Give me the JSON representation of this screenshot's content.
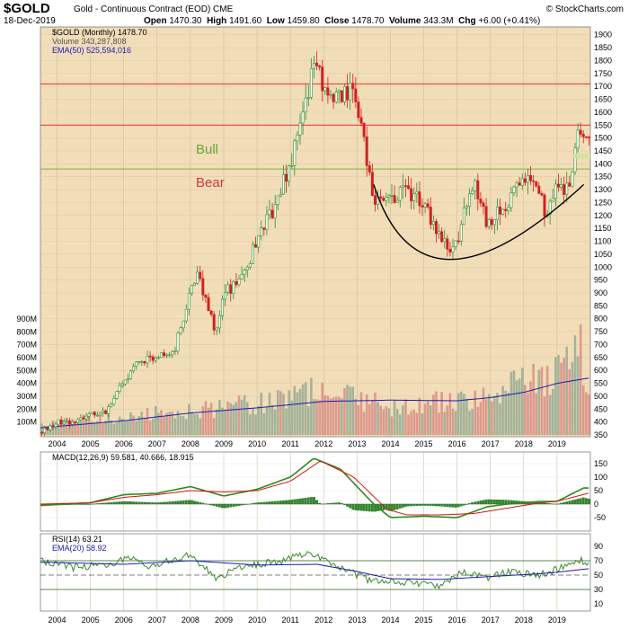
{
  "header": {
    "symbol": "$GOLD",
    "name": "Gold - Continuous Contract (EOD) CME",
    "date": "18-Dec-2019",
    "open_label": "Open",
    "open": "1470.30",
    "high_label": "High",
    "high": "1491.60",
    "low_label": "Low",
    "low": "1459.80",
    "close_label": "Close",
    "close": "1478.70",
    "volume_label": "Volume",
    "volume": "343.3M",
    "chg_label": "Chg",
    "chg": "+6.00 (+0.41%)",
    "credit": "© StockCharts.com"
  },
  "legend": {
    "price": "$GOLD (Monthly) 1478.70",
    "volume": "Volume 343,287,808",
    "ema": "EMA(50) 525,594,016",
    "macd": "MACD(12,26,9) 59.581, 40.666, 18.915",
    "rsi": "RSI(14) 63.21",
    "rsi_ema": "EMA(20) 58.92"
  },
  "annotations": {
    "bull": "Bull",
    "bear": "Bear"
  },
  "colors": {
    "panel_bg": "#f2ddb9",
    "up": "#2f8f2f",
    "down": "#d21f1f",
    "vol_up": "#a4b39a",
    "vol_down": "#dc9a8e",
    "ema": "#1a1ab0",
    "macd": "#2d8a1f",
    "signal": "#d41414",
    "resistance": "#e03232",
    "support": "#7ab53a"
  },
  "chart_data": [
    {
      "type": "candlestick",
      "title": "$GOLD (Monthly)",
      "x_ticks": [
        "2004",
        "2005",
        "2006",
        "2007",
        "2008",
        "2009",
        "2010",
        "2011",
        "2012",
        "2013",
        "2014",
        "2015",
        "2016",
        "2017",
        "2018",
        "2019"
      ],
      "y_ticks_price": [
        350,
        400,
        450,
        500,
        550,
        600,
        650,
        700,
        750,
        800,
        850,
        900,
        950,
        1000,
        1050,
        1100,
        1150,
        1200,
        1250,
        1300,
        1350,
        1400,
        1450,
        1500,
        1550,
        1600,
        1650,
        1700,
        1750,
        1800,
        1850,
        1900
      ],
      "y_ticks_volume": [
        "100M",
        "200M",
        "300M",
        "400M",
        "500M",
        "600M",
        "700M",
        "800M",
        "900M"
      ],
      "price_path": [
        [
          2003.5,
          360
        ],
        [
          2004,
          400
        ],
        [
          2004.5,
          400
        ],
        [
          2005,
          430
        ],
        [
          2005.5,
          440
        ],
        [
          2006,
          560
        ],
        [
          2006.5,
          640
        ],
        [
          2007,
          650
        ],
        [
          2007.5,
          670
        ],
        [
          2008,
          900
        ],
        [
          2008.25,
          970
        ],
        [
          2008.75,
          740
        ],
        [
          2009,
          900
        ],
        [
          2009.5,
          950
        ],
        [
          2010,
          1100
        ],
        [
          2010.5,
          1230
        ],
        [
          2011,
          1400
        ],
        [
          2011.5,
          1650
        ],
        [
          2011.67,
          1830
        ],
        [
          2012,
          1700
        ],
        [
          2012.5,
          1650
        ],
        [
          2012.9,
          1700
        ],
        [
          2013.25,
          1450
        ],
        [
          2013.5,
          1250
        ],
        [
          2014,
          1250
        ],
        [
          2014.5,
          1300
        ],
        [
          2015,
          1250
        ],
        [
          2015.5,
          1100
        ],
        [
          2015.9,
          1060
        ],
        [
          2016.5,
          1340
        ],
        [
          2016.9,
          1170
        ],
        [
          2017.5,
          1250
        ],
        [
          2018,
          1340
        ],
        [
          2018.4,
          1300
        ],
        [
          2018.7,
          1190
        ],
        [
          2019,
          1320
        ],
        [
          2019.4,
          1300
        ],
        [
          2019.6,
          1510
        ],
        [
          2019.75,
          1510
        ],
        [
          2019.95,
          1478.7
        ]
      ],
      "volume_path": [
        [
          2003.5,
          90
        ],
        [
          2006,
          150
        ],
        [
          2008,
          200
        ],
        [
          2010,
          250
        ],
        [
          2011.6,
          350
        ],
        [
          2013,
          300
        ],
        [
          2014,
          230
        ],
        [
          2016,
          280
        ],
        [
          2017,
          300
        ],
        [
          2018,
          450
        ],
        [
          2018.8,
          420
        ],
        [
          2019.5,
          650
        ],
        [
          2019.7,
          770
        ],
        [
          2019.95,
          343
        ]
      ],
      "ema_volume_path": [
        [
          2003.5,
          55
        ],
        [
          2006,
          110
        ],
        [
          2008,
          170
        ],
        [
          2010,
          210
        ],
        [
          2012,
          260
        ],
        [
          2014,
          270
        ],
        [
          2016,
          265
        ],
        [
          2017,
          290
        ],
        [
          2018,
          330
        ],
        [
          2019,
          400
        ],
        [
          2019.9,
          440
        ]
      ],
      "resistance_levels": [
        1550,
        1710
      ],
      "support_level": 1380,
      "cup_curve": [
        [
          2013.5,
          1320
        ],
        [
          2015.8,
          1030
        ],
        [
          2019.8,
          1320
        ]
      ]
    },
    {
      "type": "line",
      "title": "MACD(12,26,9)",
      "y_ticks": [
        -50,
        0,
        50,
        100,
        150
      ],
      "macd_path": [
        [
          2003.5,
          -5
        ],
        [
          2005,
          5
        ],
        [
          2006,
          35
        ],
        [
          2007,
          40
        ],
        [
          2008,
          65
        ],
        [
          2009,
          30
        ],
        [
          2010,
          55
        ],
        [
          2011,
          100
        ],
        [
          2011.7,
          170
        ],
        [
          2012.5,
          130
        ],
        [
          2013.5,
          0
        ],
        [
          2014,
          -50
        ],
        [
          2015,
          -45
        ],
        [
          2016,
          -50
        ],
        [
          2016.9,
          -10
        ],
        [
          2017.5,
          0
        ],
        [
          2018.5,
          10
        ],
        [
          2019,
          10
        ],
        [
          2019.8,
          60
        ],
        [
          2019.95,
          59.581
        ]
      ],
      "signal_path": [
        [
          2003.5,
          0
        ],
        [
          2005,
          5
        ],
        [
          2006,
          25
        ],
        [
          2007,
          35
        ],
        [
          2008,
          50
        ],
        [
          2009,
          45
        ],
        [
          2010,
          50
        ],
        [
          2011,
          85
        ],
        [
          2011.9,
          160
        ],
        [
          2012.9,
          100
        ],
        [
          2013.9,
          -20
        ],
        [
          2014.5,
          -40
        ],
        [
          2015.5,
          -40
        ],
        [
          2016.5,
          -35
        ],
        [
          2017.5,
          -15
        ],
        [
          2018.5,
          5
        ],
        [
          2019,
          10
        ],
        [
          2019.95,
          40.666
        ]
      ]
    },
    {
      "type": "line",
      "title": "RSI(14)",
      "y_ticks": [
        10,
        30,
        50,
        70,
        90
      ],
      "rsi_path": [
        [
          2003.5,
          70
        ],
        [
          2004.5,
          60
        ],
        [
          2005.5,
          65
        ],
        [
          2006.3,
          75
        ],
        [
          2006.8,
          62
        ],
        [
          2008,
          78
        ],
        [
          2008.8,
          45
        ],
        [
          2009.5,
          62
        ],
        [
          2010.5,
          68
        ],
        [
          2011.67,
          80
        ],
        [
          2012.5,
          60
        ],
        [
          2013.5,
          40
        ],
        [
          2014,
          42
        ],
        [
          2015.5,
          35
        ],
        [
          2016.2,
          55
        ],
        [
          2016.9,
          45
        ],
        [
          2017.5,
          55
        ],
        [
          2018.5,
          50
        ],
        [
          2019,
          58
        ],
        [
          2019.7,
          72
        ],
        [
          2019.95,
          63.21
        ]
      ],
      "rsi_ema_path": [
        [
          2003.5,
          68
        ],
        [
          2006,
          65
        ],
        [
          2008,
          70
        ],
        [
          2010,
          64
        ],
        [
          2011.8,
          65
        ],
        [
          2013,
          55
        ],
        [
          2014,
          45
        ],
        [
          2015.5,
          44
        ],
        [
          2017,
          48
        ],
        [
          2018.5,
          52
        ],
        [
          2019,
          54
        ],
        [
          2019.95,
          58.92
        ]
      ],
      "reference_lines": [
        30,
        50,
        70
      ]
    }
  ]
}
